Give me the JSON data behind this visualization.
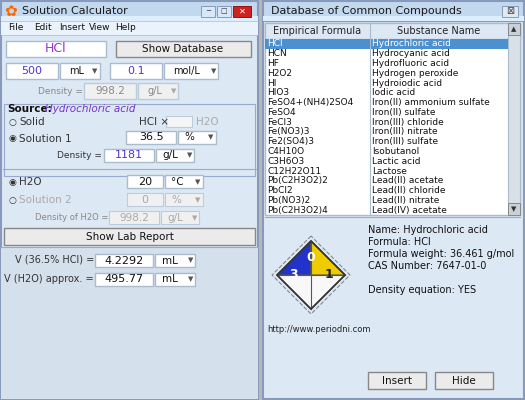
{
  "title_left": "Solution Calculator",
  "title_right": "Database of Common Compounds",
  "menu_items": [
    "File",
    "Edit",
    "Insert",
    "View",
    "Help"
  ],
  "hcl_label": "HCl",
  "show_database_btn": "Show Database",
  "volume_value": "500",
  "volume_unit": "mL",
  "conc_value": "0.1",
  "conc_unit": "mol/L",
  "density_label": "Density =",
  "density_value": "998.2",
  "density_unit": "g/L",
  "source_label": "Source:",
  "source_name": "Hydrochloric acid",
  "solid_label": "Solid",
  "hcl_x": "HCl ×",
  "h2o_label": "H2O",
  "solution1_label": "Solution 1",
  "sol1_value": "36.5",
  "sol1_unit": "%",
  "density2_label": "Density =",
  "density2_value": "1181",
  "density2_unit": "g/L",
  "h2o_radio": "H2O",
  "temp_value": "20",
  "temp_unit": "°C",
  "solution2_label": "Solution 2",
  "sol2_value": "0",
  "sol2_unit": "%",
  "density_h2o_label": "Density of H2O =",
  "density_h2o_value": "998.2",
  "density_h2o_unit": "g/L",
  "show_lab_report": "Show Lab Report",
  "v1_label": "V (36.5% HCl) =",
  "v1_value": "4.2292",
  "v1_unit": "mL",
  "v2_label": "V (H2O) approx. =",
  "v2_value": "495.77",
  "v2_unit": "mL",
  "db_header1": "Empirical Formula",
  "db_header2": "Substance Name",
  "db_rows": [
    [
      "HCl",
      "Hydrochloric acid"
    ],
    [
      "HCN",
      "Hydrocyanic acid"
    ],
    [
      "HF",
      "Hydrofluoric acid"
    ],
    [
      "H2O2",
      "Hydrogen peroxide"
    ],
    [
      "HI",
      "Hydroiodic acid"
    ],
    [
      "HIO3",
      "Iodic acid"
    ],
    [
      "FeSO4+(NH4)2SO4",
      "Iron(II) ammonium sulfate"
    ],
    [
      "FeSO4",
      "Iron(II) sulfate"
    ],
    [
      "FeCl3",
      "Iron(III) chloride"
    ],
    [
      "Fe(NO3)3",
      "Iron(III) nitrate"
    ],
    [
      "Fe2(SO4)3",
      "Iron(III) sulfate"
    ],
    [
      "C4H10O",
      "Isobutanol"
    ],
    [
      "C3H6O3",
      "Lactic acid"
    ],
    [
      "C12H22O11",
      "Lactose"
    ],
    [
      "Pb(C2H3O2)2",
      "Lead(II) acetate"
    ],
    [
      "PbCl2",
      "Lead(II) chloride"
    ],
    [
      "Pb(NO3)2",
      "Lead(II) nitrate"
    ],
    [
      "Pb(C2H3O2)4",
      "Lead(IV) acetate"
    ]
  ],
  "selected_row": 0,
  "compound_name": "Name: Hydrochloric acid",
  "compound_formula": "Formula: HCl",
  "compound_weight": "Formula weight: 36.461 g/mol",
  "compound_cas": "CAS Number: 7647-01-0",
  "compound_density": "Density equation: YES",
  "url": "http://www.periodni.com",
  "insert_btn": "Insert",
  "hide_btn": "Hide"
}
